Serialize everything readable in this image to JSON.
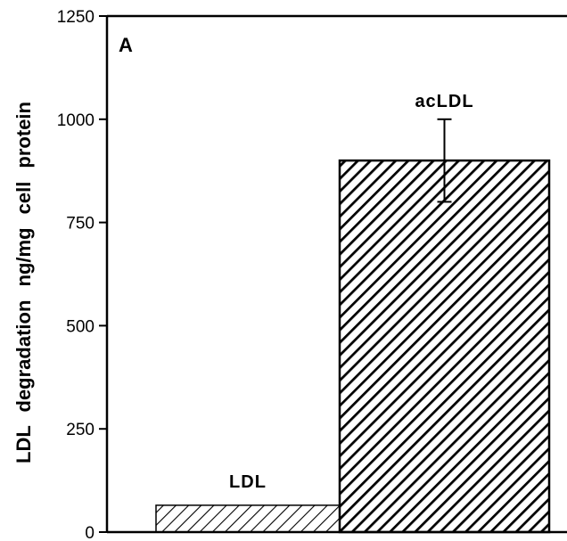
{
  "chart_data": {
    "type": "bar",
    "panel_label": "A",
    "ylabel": "LDL degradation ng/mg cell protein",
    "xlabel": "",
    "ylim": [
      0,
      1250
    ],
    "yticks": [
      0,
      250,
      500,
      750,
      1000,
      1250
    ],
    "categories": [
      "LDL",
      "acLDL"
    ],
    "values": [
      65,
      900
    ],
    "errors": [
      null,
      100
    ],
    "bar_patterns": [
      "light-diagonal-hatch",
      "dense-diagonal-hatch"
    ],
    "grid": false,
    "legend": "none"
  }
}
